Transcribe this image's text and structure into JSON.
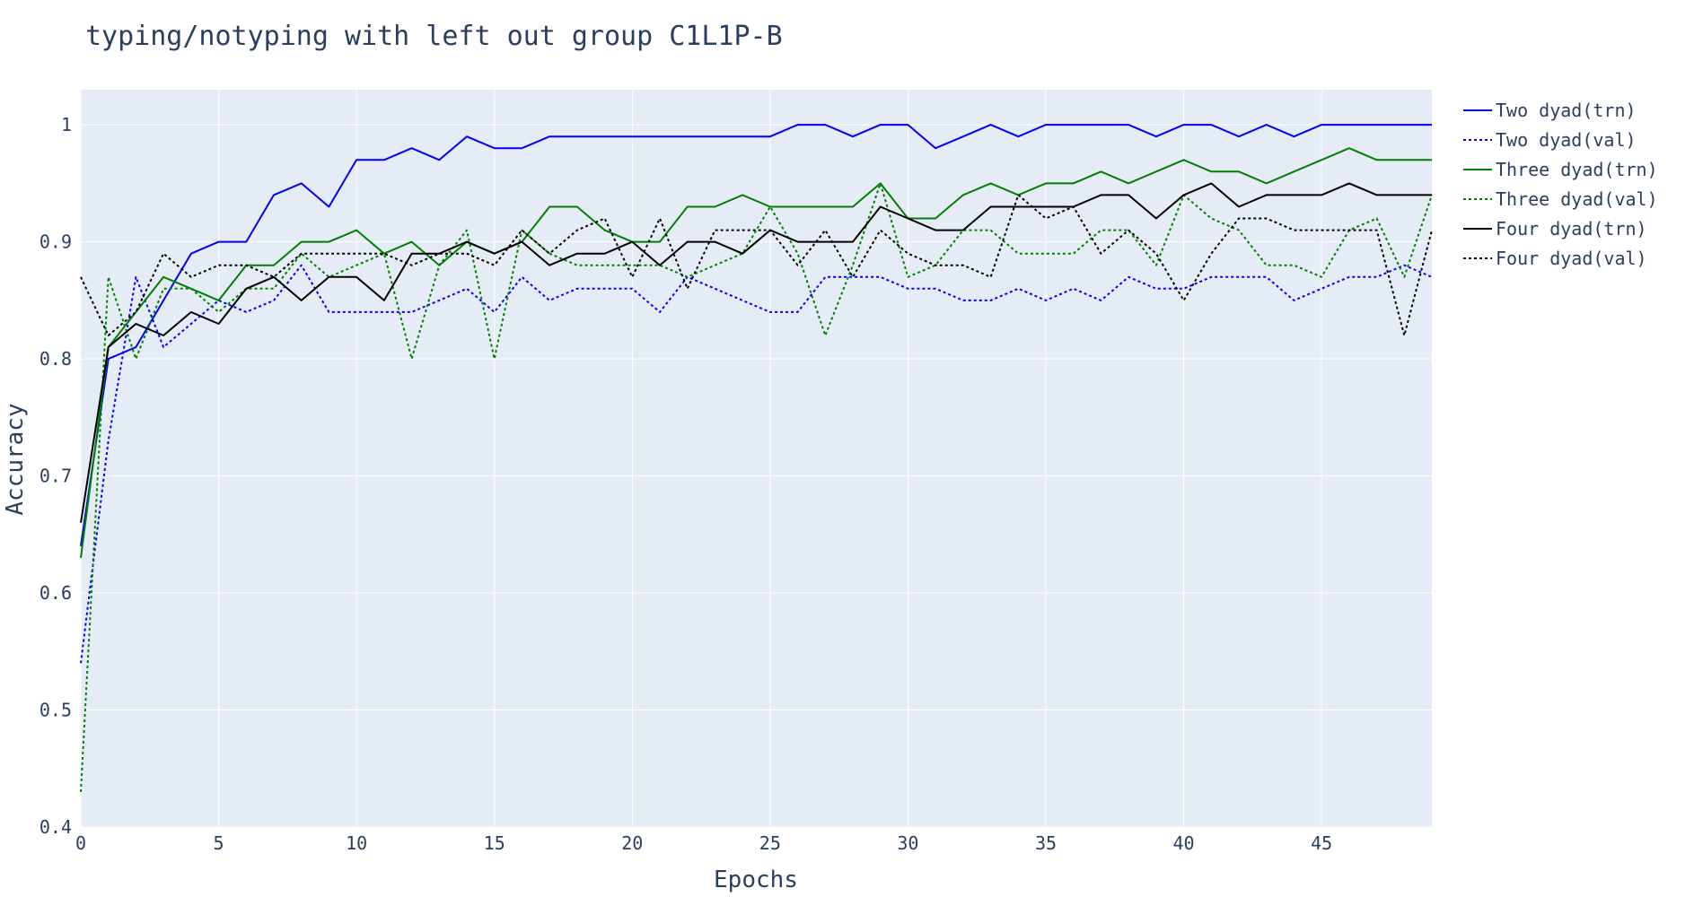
{
  "chart_data": {
    "type": "line",
    "title": "typing/notyping with left out group C1L1P-B",
    "xlabel": "Epochs",
    "ylabel": "Accuracy",
    "xlim": [
      0,
      49
    ],
    "ylim": [
      0.4,
      1.03
    ],
    "xticks": [
      0,
      5,
      10,
      15,
      20,
      25,
      30,
      35,
      40,
      45
    ],
    "yticks": [
      0.4,
      0.5,
      0.6,
      0.7,
      0.8,
      0.9,
      1
    ],
    "grid": true,
    "legend_position": "right",
    "plot_background": "#e5ecf6",
    "x": [
      0,
      1,
      2,
      3,
      4,
      5,
      6,
      7,
      8,
      9,
      10,
      11,
      12,
      13,
      14,
      15,
      16,
      17,
      18,
      19,
      20,
      21,
      22,
      23,
      24,
      25,
      26,
      27,
      28,
      29,
      30,
      31,
      32,
      33,
      34,
      35,
      36,
      37,
      38,
      39,
      40,
      41,
      42,
      43,
      44,
      45,
      46,
      47,
      48,
      49
    ],
    "series": [
      {
        "name": "Two dyad(trn)",
        "color": "#0000ff",
        "dash": "solid",
        "values": [
          0.64,
          0.8,
          0.81,
          0.85,
          0.89,
          0.9,
          0.9,
          0.94,
          0.95,
          0.93,
          0.97,
          0.97,
          0.98,
          0.97,
          0.99,
          0.98,
          0.98,
          0.99,
          0.99,
          0.99,
          0.99,
          0.99,
          0.99,
          0.99,
          0.99,
          0.99,
          1.0,
          1.0,
          0.99,
          1.0,
          1.0,
          0.98,
          0.99,
          1.0,
          0.99,
          1.0,
          1.0,
          1.0,
          1.0,
          0.99,
          1.0,
          1.0,
          0.99,
          1.0,
          0.99,
          1.0,
          1.0,
          1.0,
          1.0,
          1.0
        ]
      },
      {
        "name": "Two dyad(val)",
        "color": "#0000ff",
        "dash": "dot",
        "values": [
          0.54,
          0.73,
          0.87,
          0.81,
          0.83,
          0.85,
          0.84,
          0.85,
          0.88,
          0.84,
          0.84,
          0.84,
          0.84,
          0.85,
          0.86,
          0.84,
          0.87,
          0.85,
          0.86,
          0.86,
          0.86,
          0.84,
          0.87,
          0.86,
          0.85,
          0.84,
          0.84,
          0.87,
          0.87,
          0.87,
          0.86,
          0.86,
          0.85,
          0.85,
          0.86,
          0.85,
          0.86,
          0.85,
          0.87,
          0.86,
          0.86,
          0.87,
          0.87,
          0.87,
          0.85,
          0.86,
          0.87,
          0.87,
          0.88,
          0.87
        ]
      },
      {
        "name": "Three dyad(trn)",
        "color": "#008000",
        "dash": "solid",
        "values": [
          0.63,
          0.81,
          0.84,
          0.87,
          0.86,
          0.85,
          0.88,
          0.88,
          0.9,
          0.9,
          0.91,
          0.89,
          0.9,
          0.88,
          0.9,
          0.89,
          0.9,
          0.93,
          0.93,
          0.91,
          0.9,
          0.9,
          0.93,
          0.93,
          0.94,
          0.93,
          0.93,
          0.93,
          0.93,
          0.95,
          0.92,
          0.92,
          0.94,
          0.95,
          0.94,
          0.95,
          0.95,
          0.96,
          0.95,
          0.96,
          0.97,
          0.96,
          0.96,
          0.95,
          0.96,
          0.97,
          0.98,
          0.97,
          0.97,
          0.97
        ]
      },
      {
        "name": "Three dyad(val)",
        "color": "#008000",
        "dash": "dot",
        "values": [
          0.43,
          0.87,
          0.8,
          0.86,
          0.86,
          0.84,
          0.86,
          0.86,
          0.89,
          0.87,
          0.88,
          0.89,
          0.8,
          0.88,
          0.91,
          0.8,
          0.91,
          0.89,
          0.88,
          0.88,
          0.88,
          0.88,
          0.87,
          0.88,
          0.89,
          0.93,
          0.89,
          0.82,
          0.88,
          0.95,
          0.87,
          0.88,
          0.91,
          0.91,
          0.89,
          0.89,
          0.89,
          0.91,
          0.91,
          0.88,
          0.94,
          0.92,
          0.91,
          0.88,
          0.88,
          0.87,
          0.91,
          0.92,
          0.87,
          0.94
        ]
      },
      {
        "name": "Four dyad(trn)",
        "color": "#000000",
        "dash": "solid",
        "values": [
          0.66,
          0.81,
          0.83,
          0.82,
          0.84,
          0.83,
          0.86,
          0.87,
          0.85,
          0.87,
          0.87,
          0.85,
          0.89,
          0.89,
          0.9,
          0.89,
          0.9,
          0.88,
          0.89,
          0.89,
          0.9,
          0.88,
          0.9,
          0.9,
          0.89,
          0.91,
          0.9,
          0.9,
          0.9,
          0.93,
          0.92,
          0.91,
          0.91,
          0.93,
          0.93,
          0.93,
          0.93,
          0.94,
          0.94,
          0.92,
          0.94,
          0.95,
          0.93,
          0.94,
          0.94,
          0.94,
          0.95,
          0.94,
          0.94,
          0.94
        ]
      },
      {
        "name": "Four dyad(val)",
        "color": "#000000",
        "dash": "dot",
        "values": [
          0.87,
          0.82,
          0.84,
          0.89,
          0.87,
          0.88,
          0.88,
          0.87,
          0.89,
          0.89,
          0.89,
          0.89,
          0.88,
          0.89,
          0.89,
          0.88,
          0.91,
          0.89,
          0.91,
          0.92,
          0.87,
          0.92,
          0.86,
          0.91,
          0.91,
          0.91,
          0.88,
          0.91,
          0.87,
          0.91,
          0.89,
          0.88,
          0.88,
          0.87,
          0.94,
          0.92,
          0.93,
          0.89,
          0.91,
          0.89,
          0.85,
          0.89,
          0.92,
          0.92,
          0.91,
          0.91,
          0.91,
          0.91,
          0.82,
          0.91
        ]
      }
    ]
  }
}
